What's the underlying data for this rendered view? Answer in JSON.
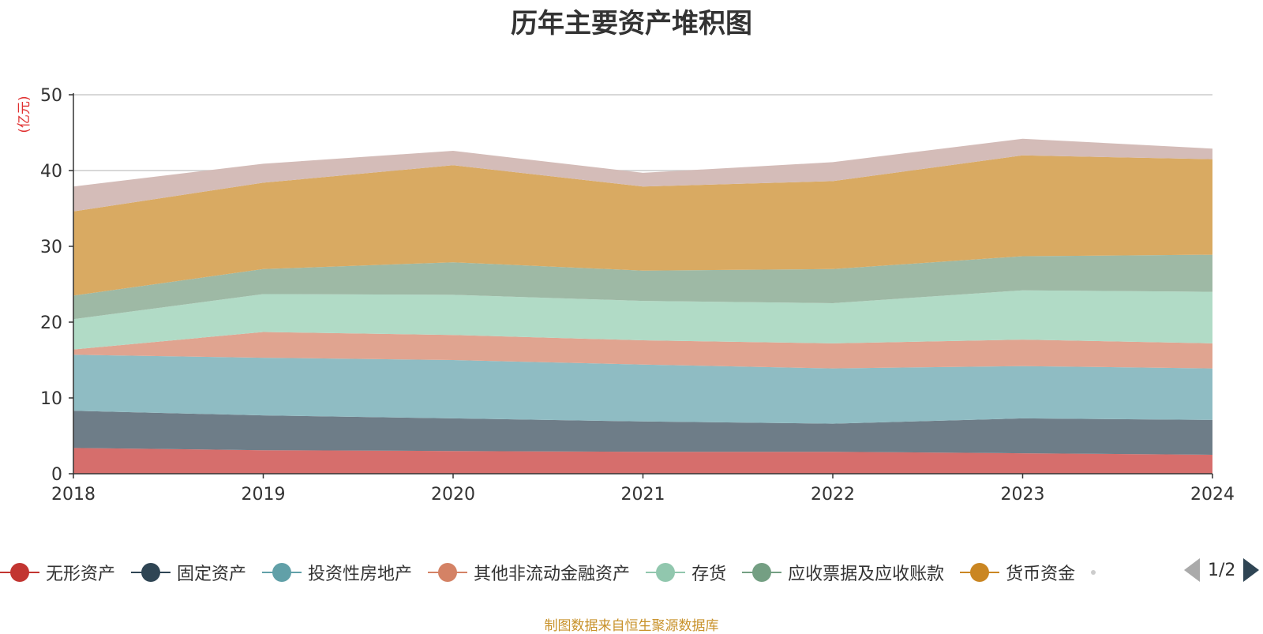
{
  "chart_data": {
    "type": "area",
    "title": "历年主要资产堆积图",
    "ylabel": "(亿元)",
    "x": [
      "2018",
      "2019",
      "2020",
      "2021",
      "2022",
      "2023",
      "2024"
    ],
    "ylim": [
      0,
      50
    ],
    "yticks": [
      "0",
      "10",
      "20",
      "30",
      "40",
      "50"
    ],
    "stacked": true,
    "grid": true,
    "legend_position": "bottom",
    "series": [
      {
        "name": "无形资产",
        "color": "#d66e6c",
        "legend_color": "#c23531",
        "values": [
          3.4,
          3.1,
          3.0,
          2.9,
          2.9,
          2.7,
          2.5
        ]
      },
      {
        "name": "固定资产",
        "color": "#6e7d88",
        "legend_color": "#2f4554",
        "values": [
          4.9,
          4.6,
          4.3,
          4.0,
          3.7,
          4.6,
          4.6
        ]
      },
      {
        "name": "投资性房地产",
        "color": "#8fbcc3",
        "legend_color": "#61a0a8",
        "values": [
          7.4,
          7.6,
          7.7,
          7.5,
          7.3,
          6.9,
          6.8
        ]
      },
      {
        "name": "其他非流动金融资产",
        "color": "#e0a490",
        "legend_color": "#d48265",
        "values": [
          0.7,
          3.4,
          3.3,
          3.2,
          3.3,
          3.5,
          3.3
        ]
      },
      {
        "name": "存货",
        "color": "#b1dbc6",
        "legend_color": "#91c7ae",
        "values": [
          4.0,
          5.0,
          5.3,
          5.2,
          5.3,
          6.5,
          6.8
        ]
      },
      {
        "name": "应收票据及应收账款",
        "color": "#9eb9a5",
        "legend_color": "#749f83",
        "values": [
          3.1,
          3.3,
          4.3,
          4.0,
          4.5,
          4.5,
          4.9
        ]
      },
      {
        "name": "货币资金",
        "color": "#d9aa62",
        "legend_color": "#ca8622",
        "values": [
          11.1,
          11.4,
          12.8,
          11.1,
          11.6,
          13.3,
          12.6
        ]
      },
      {
        "name": "",
        "color": "#d4bcb8",
        "legend_color": "#bda29a",
        "values": [
          3.3,
          2.5,
          1.9,
          1.8,
          2.5,
          2.2,
          1.4
        ]
      }
    ]
  },
  "legend": {
    "page_indicator": "1/2"
  },
  "footer": {
    "source": "制图数据来自恒生聚源数据库"
  }
}
